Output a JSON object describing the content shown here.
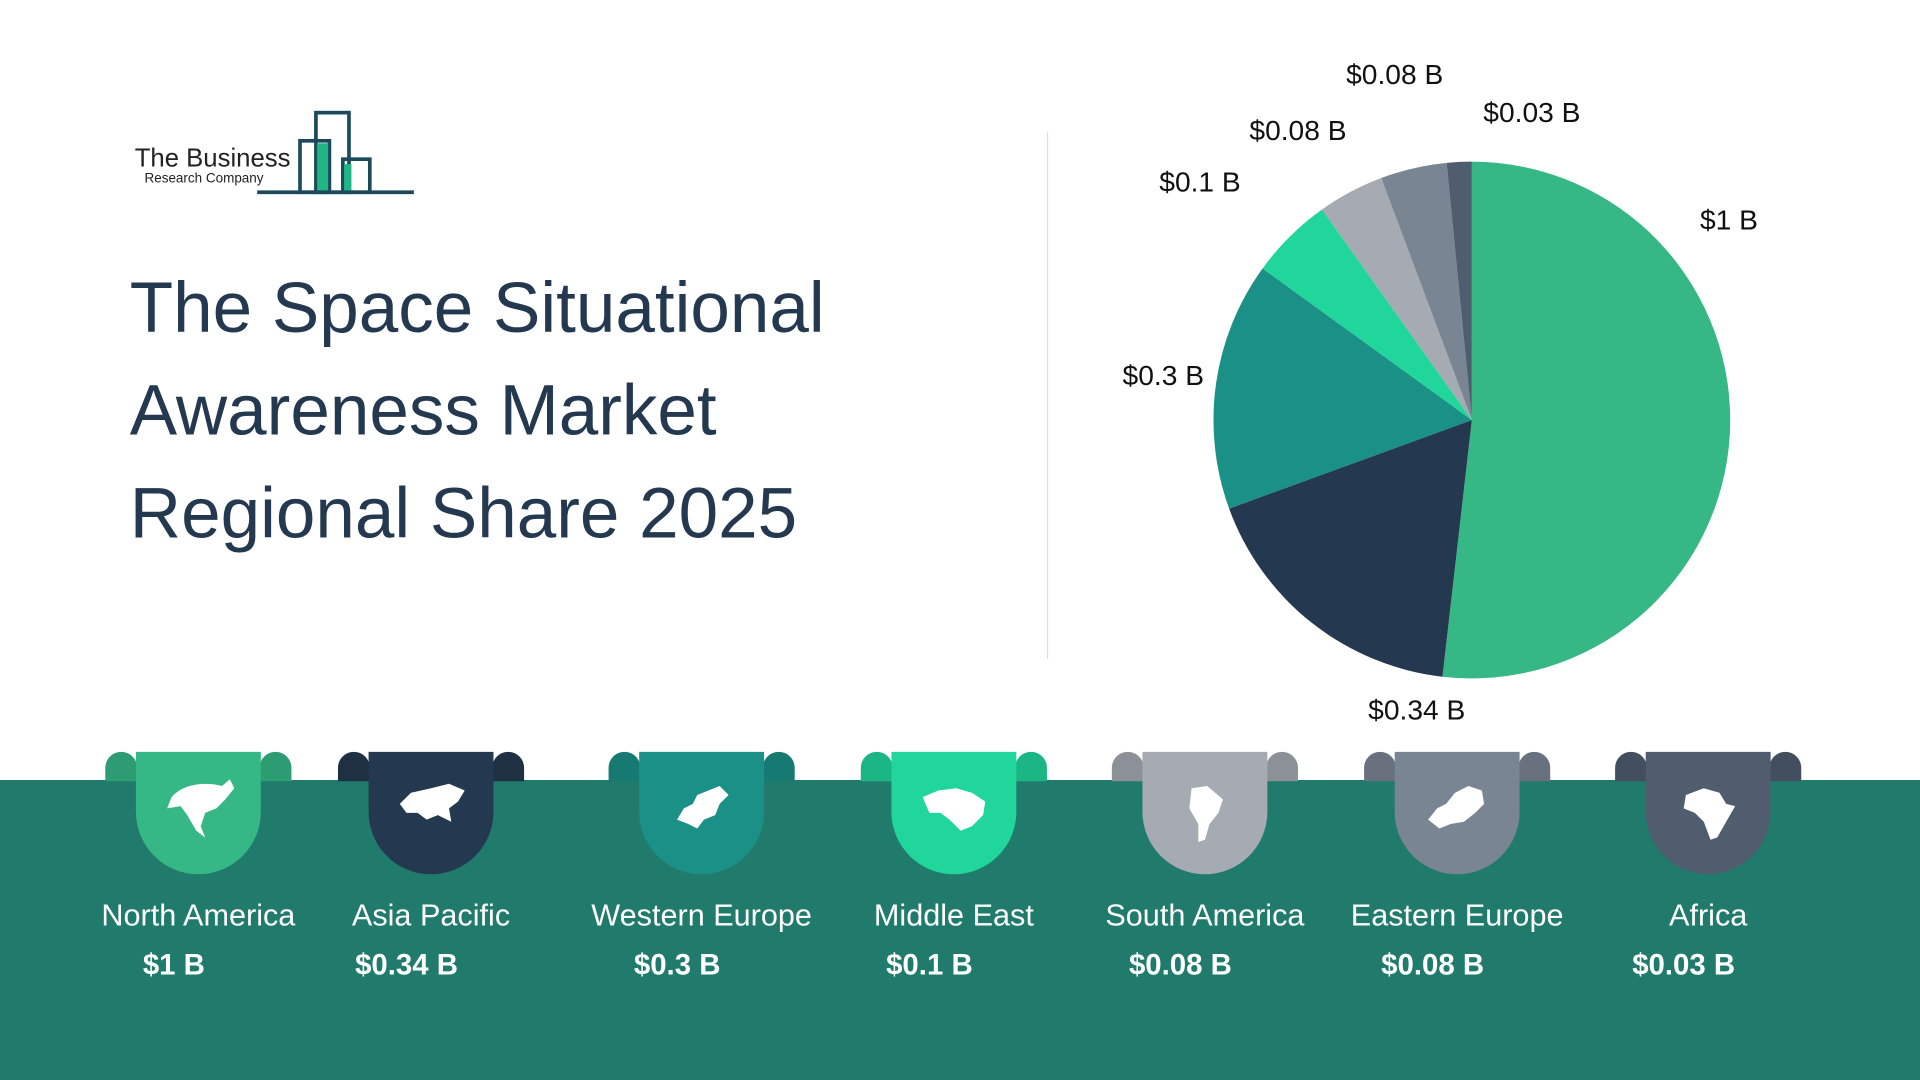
{
  "logo": {
    "line1": "The Business",
    "line2": "Research Company"
  },
  "title": "The Space Situational Awareness Market Regional Share 2025",
  "chart_data": {
    "type": "pie",
    "title": "The Space Situational Awareness Market Regional Share 2025",
    "unit": "$ B",
    "categories": [
      "North America",
      "Asia Pacific",
      "Western Europe",
      "Middle East",
      "South America",
      "Eastern Europe",
      "Africa"
    ],
    "values": [
      1,
      0.34,
      0.3,
      0.1,
      0.08,
      0.08,
      0.03
    ],
    "labels": [
      "$1 B",
      "$0.34 B",
      "$0.3 B",
      "$0.1 B",
      "$0.08 B",
      "$0.08 B",
      "$0.03 B"
    ],
    "colors": [
      "#35b786",
      "#24384f",
      "#1b9086",
      "#20d69a",
      "#a5aab3",
      "#7a8593",
      "#4f5d6f"
    ],
    "start": "top",
    "direction": "clockwise"
  },
  "regions": [
    {
      "name": "North America",
      "value": "$1 B",
      "icon": "north-america-map-icon"
    },
    {
      "name": "Asia Pacific",
      "value": "$0.34 B",
      "icon": "asia-map-icon"
    },
    {
      "name": "Western Europe",
      "value": "$0.3 B",
      "icon": "western-europe-map-icon"
    },
    {
      "name": "Middle East",
      "value": "$0.1 B",
      "icon": "middle-east-map-icon"
    },
    {
      "name": "South America",
      "value": "$0.08 B",
      "icon": "south-america-map-icon"
    },
    {
      "name": "Eastern Europe",
      "value": "$0.08 B",
      "icon": "eastern-europe-map-icon"
    },
    {
      "name": "Africa",
      "value": "$0.03 B",
      "icon": "africa-map-icon"
    }
  ],
  "colors": {
    "band": "#207b6c",
    "title": "#24384f"
  }
}
